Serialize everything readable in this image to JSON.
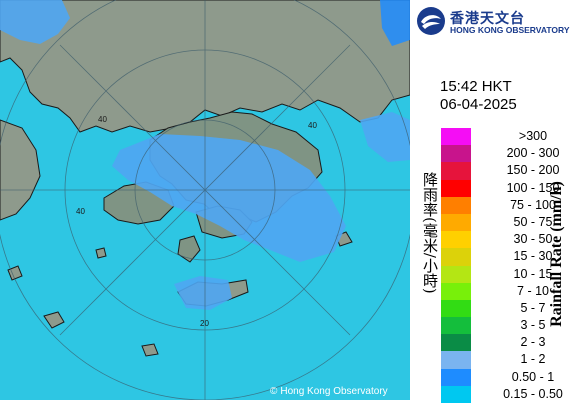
{
  "logo": {
    "name_zh": "香港天文台",
    "name_en": "HONG KONG OBSERVATORY",
    "icon": "hko-logo-icon",
    "color": "#1a3b8c"
  },
  "timestamp": {
    "time": "15:42 HKT",
    "date": "06-04-2025"
  },
  "legend": {
    "title_zh": "降雨率(毫米/小時)",
    "title_en": "Rainfall Rate (mm/h)",
    "items": [
      {
        "label": ">300",
        "color": "#f50df5"
      },
      {
        "label": "200 - 300",
        "color": "#c8148c"
      },
      {
        "label": "150 - 200",
        "color": "#e6143c"
      },
      {
        "label": "100 - 150",
        "color": "#ff0000"
      },
      {
        "label": "75 - 100",
        "color": "#ff7f00"
      },
      {
        "label": "50 - 75",
        "color": "#ffaa00"
      },
      {
        "label": "30 - 50",
        "color": "#ffd000"
      },
      {
        "label": "15 - 30",
        "color": "#dcd20a"
      },
      {
        "label": "10 - 15",
        "color": "#b4e614"
      },
      {
        "label": "7 - 10",
        "color": "#78f00a"
      },
      {
        "label": "5 - 7",
        "color": "#32dc14"
      },
      {
        "label": "3 - 5",
        "color": "#14be3c"
      },
      {
        "label": "2 - 3",
        "color": "#0a8c46"
      },
      {
        "label": "1 - 2",
        "color": "#7ab4f0"
      },
      {
        "label": "0.50 - 1",
        "color": "#1e8cff"
      },
      {
        "label": "0.15 - 0.50",
        "color": "#00c8f0"
      }
    ]
  },
  "map": {
    "range_ring_labels": [
      "40",
      "40",
      "40",
      "20"
    ],
    "sea_color": "#2ec6e3",
    "land_color": "#8e9a8c",
    "rain_color": "#4fa6f2"
  },
  "copyright": {
    "text": "Hong Kong Observatory",
    "icon": "copyright-icon"
  }
}
